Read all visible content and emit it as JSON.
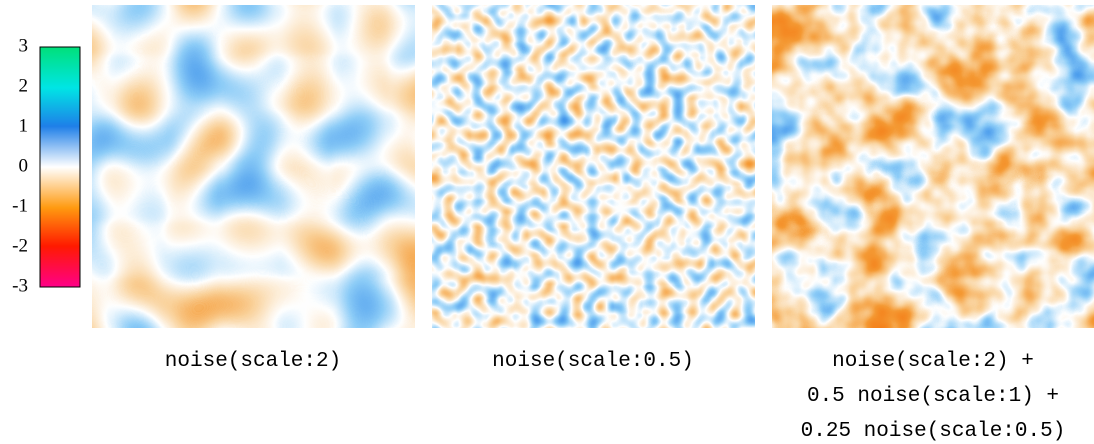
{
  "colorbar": {
    "ticks": [
      3,
      2,
      1,
      0,
      -1,
      -2,
      -3
    ]
  },
  "panels": [
    {
      "caption": [
        "noise(scale:2)"
      ]
    },
    {
      "caption": [
        "noise(scale:0.5)"
      ]
    },
    {
      "caption": [
        "noise(scale:2) +",
        "0.5 noise(scale:1) +",
        "0.25 noise(scale:0.5)"
      ]
    }
  ]
}
